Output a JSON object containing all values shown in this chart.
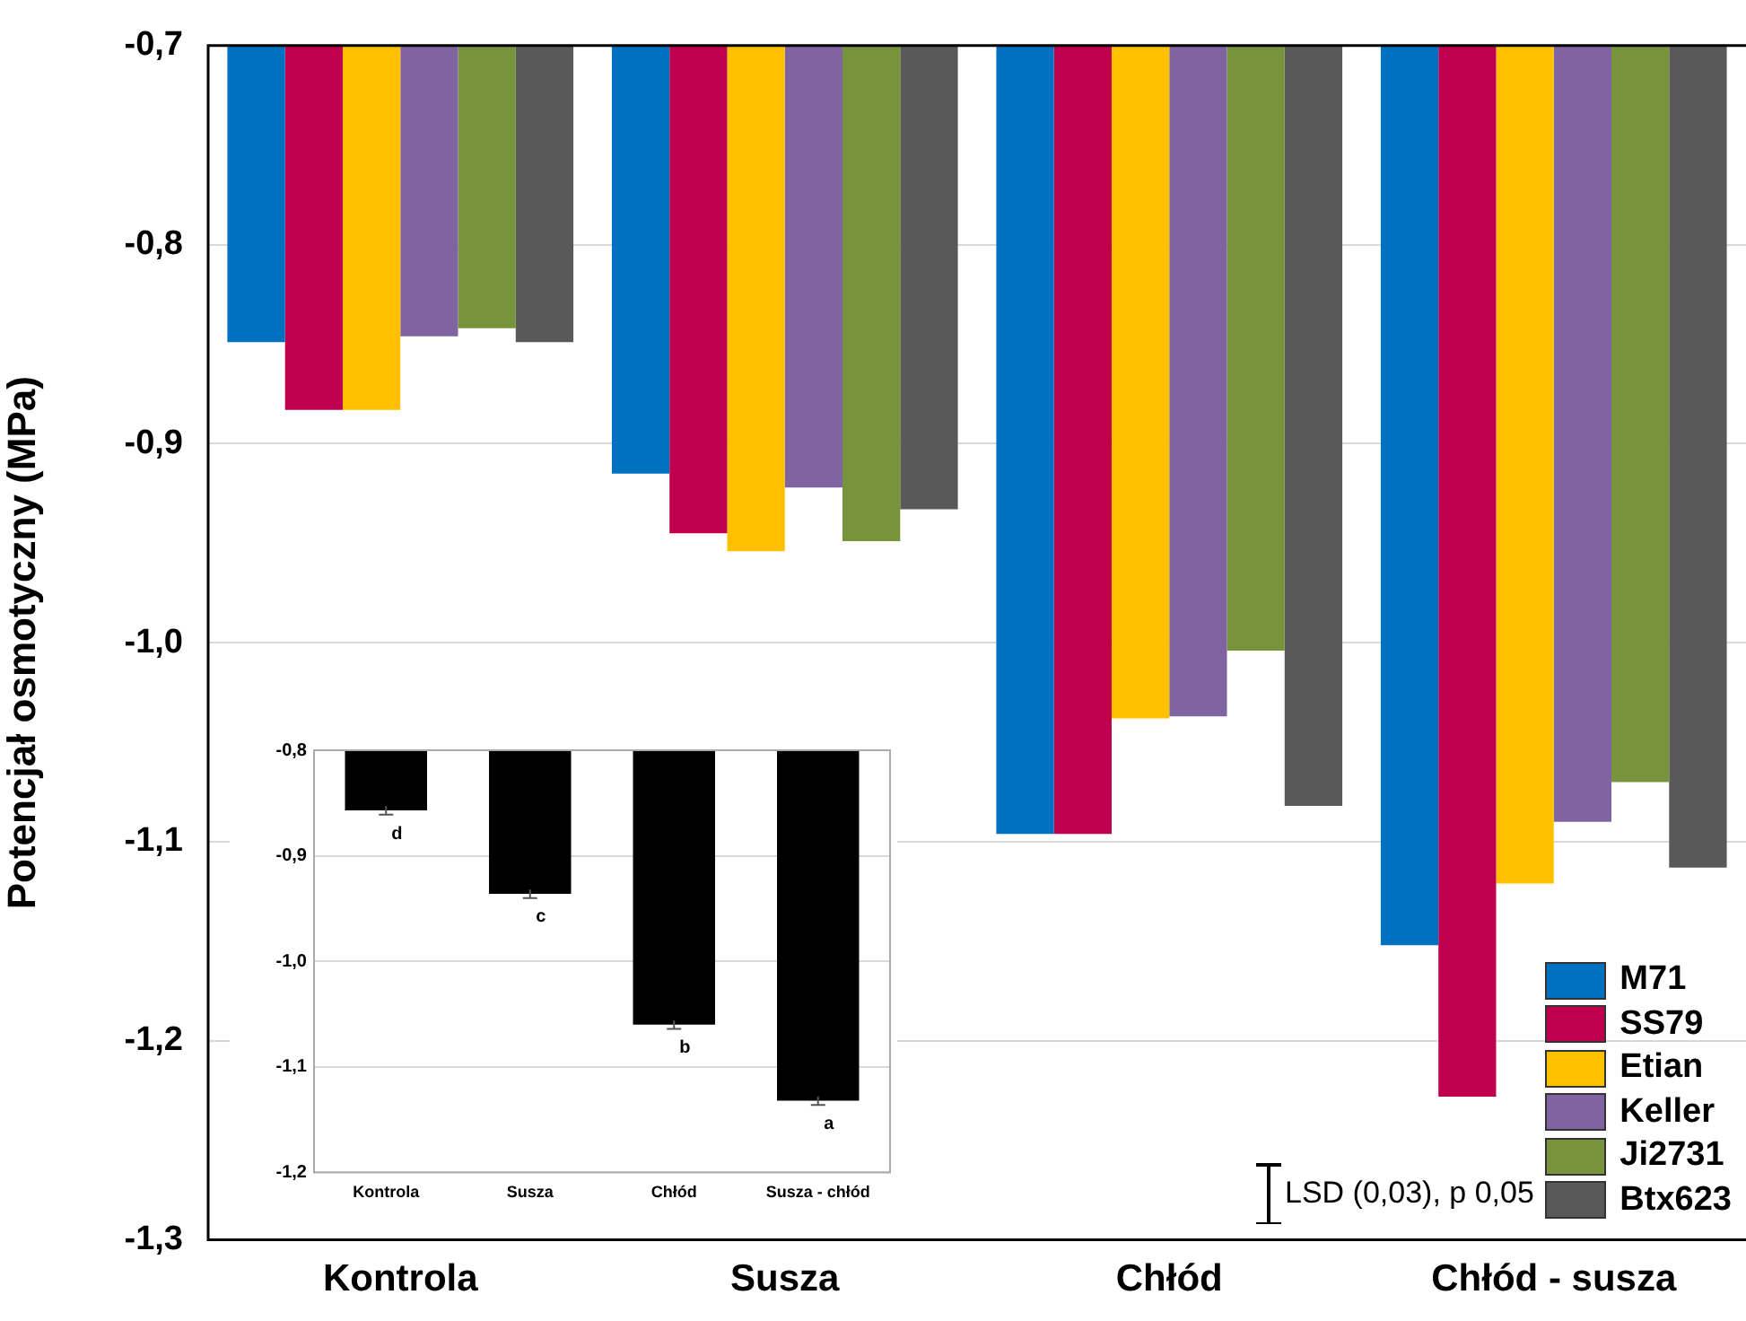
{
  "chart_data": [
    {
      "type": "bar",
      "ylabel": "Potencjał osmotyczny (MPa)",
      "categories": [
        "Kontrola",
        "Susza",
        "Chłód",
        "Chłód - susza"
      ],
      "series": [
        {
          "name": "M71",
          "color": "#0070c0",
          "values": [
            -0.849,
            -0.915,
            -1.096,
            -1.152
          ]
        },
        {
          "name": "SS79",
          "color": "#c0004e",
          "values": [
            -0.883,
            -0.945,
            -1.096,
            -1.228
          ]
        },
        {
          "name": "Etian",
          "color": "#ffc000",
          "values": [
            -0.883,
            -0.954,
            -1.038,
            -1.121
          ]
        },
        {
          "name": "Keller",
          "color": "#8064a2",
          "values": [
            -0.846,
            -0.922,
            -1.037,
            -1.09
          ]
        },
        {
          "name": "Ji2731",
          "color": "#77933c",
          "values": [
            -0.842,
            -0.949,
            -1.004,
            -1.07
          ]
        },
        {
          "name": "Btx623",
          "color": "#595959",
          "values": [
            -0.849,
            -0.933,
            -1.082,
            -1.113
          ]
        }
      ],
      "ylim": [
        -1.3,
        -0.7
      ],
      "yticks": [
        {
          "value": -1.3,
          "label": "-1,3"
        },
        {
          "value": -1.2,
          "label": "-1,2"
        },
        {
          "value": -1.1,
          "label": "-1,1"
        },
        {
          "value": -1.0,
          "label": "-1,0"
        },
        {
          "value": -0.9,
          "label": "-0,9"
        },
        {
          "value": -0.8,
          "label": "-0,8"
        },
        {
          "value": -0.7,
          "label": "-0,7"
        }
      ],
      "grid": "y",
      "legend": "bottom right",
      "annotations": [
        "LSD (0,03), p 0,05"
      ]
    },
    {
      "type": "bar",
      "categories": [
        "Kontrola",
        "Susza",
        "Chłód",
        "Susza - chłód"
      ],
      "values": [
        -0.857,
        -0.936,
        -1.06,
        -1.132
      ],
      "color": "#000000",
      "errors": [
        0.004,
        0.004,
        0.004,
        0.004
      ],
      "ylim": [
        -1.2,
        -0.8
      ],
      "yticks": [
        {
          "value": -1.2,
          "label": "-1,2"
        },
        {
          "value": -1.1,
          "label": "-1,1"
        },
        {
          "value": -1.0,
          "label": "-1,0"
        },
        {
          "value": -0.9,
          "label": "-0,9"
        },
        {
          "value": -0.8,
          "label": "-0,8"
        }
      ],
      "grid": "y",
      "annotations": [
        {
          "text": "d",
          "x": "Kontrola",
          "y": -0.857
        },
        {
          "text": "c",
          "x": "Susza",
          "y": -0.936
        },
        {
          "text": "b",
          "x": "Chłód",
          "y": -1.06
        },
        {
          "text": "a",
          "x": "Susza - chłód",
          "y": -1.132
        }
      ]
    }
  ]
}
